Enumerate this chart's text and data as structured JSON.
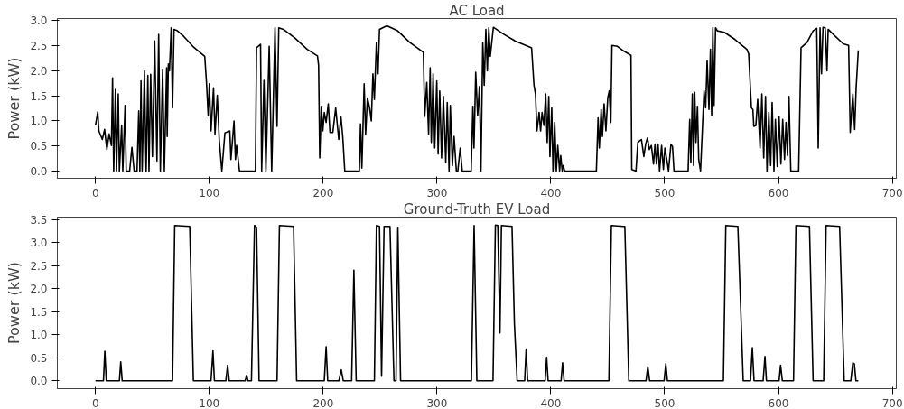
{
  "chart_data": [
    {
      "type": "line",
      "title": "AC Load",
      "ylabel": "Power (kW)",
      "xlim": [
        -33.5,
        703.5
      ],
      "ylim": [
        -0.145,
        3.045
      ],
      "xticks": [
        0,
        100,
        200,
        300,
        400,
        500,
        600,
        700
      ],
      "yticks": [
        {
          "value": 0,
          "label": "0.0"
        },
        {
          "value": 0.5,
          "label": "0.5"
        },
        {
          "value": 1,
          "label": "1.0"
        },
        {
          "value": 1.5,
          "label": "1.5"
        },
        {
          "value": 2,
          "label": "2.0"
        },
        {
          "value": 2.5,
          "label": "2.5"
        },
        {
          "value": 3,
          "label": "3.0"
        }
      ],
      "series": [
        {
          "color": "#000000",
          "x": [
            0,
            2,
            3,
            6,
            8,
            10,
            12,
            14,
            15,
            16,
            17.5,
            18.5,
            20,
            21,
            23,
            24,
            26,
            27,
            30,
            32,
            34,
            36.5,
            38,
            39,
            40,
            41,
            43,
            44.5,
            46,
            47,
            48.5,
            50,
            52,
            54,
            55.5,
            57,
            59,
            60.5,
            62.5,
            63,
            64,
            65,
            66.5,
            67.7,
            69,
            72,
            77.5,
            85.5,
            95,
            96,
            97.5,
            99,
            100,
            101.5,
            103.7,
            105,
            107,
            108.7,
            111,
            113.7,
            118,
            119,
            121.7,
            123,
            124,
            126.5,
            140.5,
            141.5,
            145,
            146,
            148,
            149.7,
            152.6,
            154.8,
            157.7,
            159.5,
            161,
            165,
            175,
            186,
            195,
            196,
            197,
            198.4,
            199.7,
            201,
            202.6,
            204.5,
            206,
            208.5,
            211,
            213.7,
            215.6,
            217.2,
            219,
            231.8,
            232.8,
            234,
            236,
            237.3,
            238.9,
            240.8,
            242.3,
            243.7,
            245,
            246.8,
            248.2,
            249.5,
            256,
            265.4,
            276,
            288,
            289.2,
            291,
            292.6,
            294,
            295,
            296.6,
            298,
            299.8,
            301,
            302.4,
            304,
            305.6,
            307.7,
            309,
            310.6,
            311.7,
            313.5,
            315,
            317,
            318.3,
            320.4,
            322.2,
            330,
            331.5,
            332.5,
            334,
            335.7,
            337.3,
            338.6,
            340.2,
            341.5,
            342.9,
            344.2,
            345.5,
            346.8,
            349.5,
            358,
            368.5,
            383.1,
            385.2,
            386.5,
            387.8,
            389.7,
            391,
            392.3,
            393.9,
            395.5,
            396.8,
            398.2,
            399.2,
            400.8,
            401.9,
            403.4,
            404.8,
            406.1,
            407.7,
            408.7,
            410,
            410.9,
            412.2,
            440,
            441.5,
            442.6,
            444.2,
            445.3,
            446.8,
            448.4,
            450,
            451.3,
            452.7,
            453.7,
            458.5,
            463.8,
            470.4,
            471.1,
            474.8,
            476.4,
            478,
            479.6,
            481.7,
            483.3,
            484.9,
            486.5,
            488.3,
            490.2,
            491.5,
            492.8,
            494.2,
            495.5,
            497.3,
            498.9,
            500.2,
            502.1,
            503.4,
            505.5,
            506.9,
            508.2,
            520.6,
            522,
            523,
            524.3,
            525.4,
            526.4,
            527.5,
            528.8,
            529.9,
            531.5,
            534.6,
            536,
            537.3,
            538.9,
            540.2,
            541.3,
            542.3,
            543.4,
            544.7,
            546.3,
            552.4,
            561.6,
            572.2,
            573.8,
            576.2,
            577.5,
            578.3,
            580.1,
            581.7,
            583.8,
            585.4,
            587,
            588.6,
            589.9,
            591.5,
            593.1,
            594.4,
            596,
            597.3,
            598.9,
            600.5,
            602.1,
            603.7,
            605.3,
            606.6,
            607.9,
            609.2,
            610.8,
            617.7,
            619.8,
            625.1,
            630.4,
            633.6,
            634.9,
            636.5,
            637.8,
            639.1,
            641,
            642.6,
            643.6,
            647.6,
            656.9,
            661.6,
            663,
            665.3,
            666.9,
            668.2,
            670.1
          ],
          "values": [
            0.91,
            1.18,
            0.8,
            0.63,
            0.83,
            0.43,
            0.74,
            0.51,
            1.86,
            0,
            1.63,
            0,
            1.54,
            0,
            0.91,
            0,
            1.31,
            0,
            0,
            0.47,
            0,
            0,
            1.2,
            0,
            1.8,
            0,
            2.0,
            0,
            1.91,
            0,
            1.93,
            0.29,
            2.6,
            0.2,
            2.73,
            0,
            2.03,
            0,
            2.06,
            0.69,
            2.14,
            2.0,
            2.86,
            1.26,
            2.83,
            2.8,
            2.69,
            2.49,
            2.31,
            2.29,
            1.77,
            1.11,
            1.74,
            0.8,
            1.66,
            0.74,
            1.51,
            0.63,
            0,
            0.76,
            0.8,
            0.23,
            1.0,
            0.23,
            0.51,
            0,
            0,
            2.46,
            2.53,
            0,
            1.81,
            0,
            2.49,
            0,
            2.86,
            0.89,
            2.86,
            2.83,
            2.66,
            2.43,
            2.3,
            2.11,
            0.26,
            1.29,
            0.8,
            1.17,
            0.97,
            1.34,
            0.77,
            0.77,
            1.26,
            0.63,
            1.09,
            0.69,
            0,
            0,
            0.94,
            0.06,
            1.74,
            0.74,
            1.46,
            1.26,
            1.0,
            1.94,
            1.43,
            2.57,
            1.94,
            2.83,
            2.9,
            2.8,
            2.57,
            2.37,
            1.09,
            1.77,
            0.74,
            2.06,
            0.57,
            1.94,
            0.46,
            1.8,
            0.34,
            1.6,
            0.26,
            1.49,
            0.17,
            1.37,
            0,
            1.31,
            0.11,
            0.69,
            0,
            0,
            0.46,
            0,
            0,
            1.29,
            0.46,
            1.97,
            1.11,
            1.69,
            0,
            2.57,
            1.71,
            2.83,
            2.0,
            2.86,
            2.29,
            2.87,
            2.74,
            2.6,
            2.46,
            1.71,
            1.54,
            0.8,
            1.17,
            0.8,
            1.17,
            0.91,
            1.54,
            0.57,
            1.49,
            0.29,
            1.26,
            0,
            0.97,
            0,
            0.51,
            0,
            0.31,
            0,
            0.11,
            0,
            0,
            1.06,
            0.46,
            1.23,
            0.69,
            1.34,
            0.8,
            1.46,
            1.6,
            0.97,
            2.51,
            2.49,
            2.4,
            2.31,
            0.03,
            0,
            0.57,
            0.6,
            0.63,
            0.29,
            0.54,
            0.66,
            0.43,
            0.51,
            0.14,
            0.54,
            0.14,
            0.54,
            0,
            0.51,
            0.03,
            0.46,
            0.2,
            0,
            0.53,
            0.49,
            0,
            0,
            1.03,
            0.17,
            1.54,
            0.11,
            1.57,
            0.57,
            1.29,
            0.23,
            0,
            1.6,
            1.26,
            2.2,
            1.23,
            2.43,
            1.11,
            2.86,
            1.31,
            2.86,
            2.8,
            2.77,
            2.63,
            2.43,
            2.34,
            1.26,
            1.23,
            0.89,
            0.91,
            1.43,
            0.46,
            1.54,
            0.26,
            1.49,
            0,
            1.17,
            0.11,
            1.37,
            0,
            1.03,
            0.09,
            1.09,
            0.14,
            1.03,
            0.23,
            0.97,
            0.31,
            1.49,
            0,
            0,
            2.46,
            2.57,
            2.8,
            2.85,
            0.46,
            2.86,
            1.94,
            2.87,
            2.86,
            2.0,
            2.83,
            2.74,
            2.54,
            2.51,
            0.77,
            1.54,
            0.83,
            1.66,
            2.41
          ]
        }
      ]
    },
    {
      "type": "line",
      "title": "Ground-Truth EV Load",
      "ylabel": "Power (kW)",
      "xlim": [
        -33.5,
        703.5
      ],
      "ylim": [
        -0.17,
        3.55
      ],
      "xticks": [
        0,
        100,
        200,
        300,
        400,
        500,
        600,
        700
      ],
      "yticks": [
        {
          "value": 0,
          "label": "0.0"
        },
        {
          "value": 0.5,
          "label": "0.5"
        },
        {
          "value": 1,
          "label": "1.0"
        },
        {
          "value": 1.5,
          "label": "1.5"
        },
        {
          "value": 2,
          "label": "2.0"
        },
        {
          "value": 2.5,
          "label": "2.5"
        },
        {
          "value": 3,
          "label": "3.0"
        },
        {
          "value": 3.5,
          "label": "3.5"
        }
      ],
      "series": [
        {
          "color": "#000000",
          "x": [
            0,
            7,
            8.2,
            9.5,
            21,
            22.2,
            23.5,
            67.7,
            69.6,
            82.8,
            86,
            101.5,
            103.2,
            104.5,
            114.5,
            116.1,
            117.5,
            131.5,
            132.8,
            134,
            137,
            139.7,
            141.5,
            143.7,
            159.5,
            161.6,
            174,
            176.7,
            201,
            202.6,
            204,
            213.8,
            215.9,
            217.7,
            225,
            227,
            229,
            245,
            246.8,
            249.5,
            251.3,
            253.5,
            258.7,
            262.2,
            264,
            265.6,
            268,
            330.2,
            332.6,
            335,
            349.2,
            351.3,
            353.4,
            355.3,
            356.6,
            365.9,
            368,
            370.4,
            377,
            378.3,
            379.6,
            395,
            396.3,
            397.6,
            409,
            410.3,
            411.7,
            451,
            453.2,
            463.8,
            465,
            468.5,
            483.6,
            485.2,
            486.8,
            499.5,
            501,
            502.4,
            551.6,
            553.7,
            564.3,
            569,
            575.4,
            577,
            578.5,
            586.5,
            588.1,
            589.4,
            600.5,
            601.8,
            603.4,
            613.2,
            615.3,
            627.2,
            630.4,
            639.7,
            641.8,
            653.7,
            657.7,
            663.5,
            665.3,
            666.6,
            668,
            670.1
          ],
          "values": [
            0,
            0,
            0.64,
            0,
            0,
            0.41,
            0,
            0,
            3.37,
            3.35,
            0,
            0,
            0.65,
            0,
            0,
            0.34,
            0,
            0,
            0.12,
            0,
            0,
            3.37,
            3.33,
            0,
            0,
            3.37,
            3.35,
            0,
            0,
            0.74,
            0,
            0,
            0.24,
            0,
            0,
            2.4,
            0,
            0,
            3.37,
            3.35,
            0.1,
            3.35,
            3.35,
            0,
            0,
            3.33,
            0,
            0,
            3.37,
            0,
            0,
            3.38,
            3.37,
            1.04,
            3.37,
            3.35,
            1.24,
            0,
            0,
            0.69,
            0,
            0,
            0.51,
            0,
            0,
            0.39,
            0,
            0,
            3.37,
            3.35,
            3.35,
            0,
            0,
            0.31,
            0,
            0,
            0.37,
            0,
            0,
            3.37,
            3.35,
            0,
            0,
            0.72,
            0,
            0,
            0.53,
            0,
            0,
            0.34,
            0,
            0,
            3.37,
            3.35,
            0,
            0,
            3.37,
            3.35,
            0,
            0,
            0.39,
            0.37,
            0,
            0
          ]
        }
      ]
    }
  ]
}
